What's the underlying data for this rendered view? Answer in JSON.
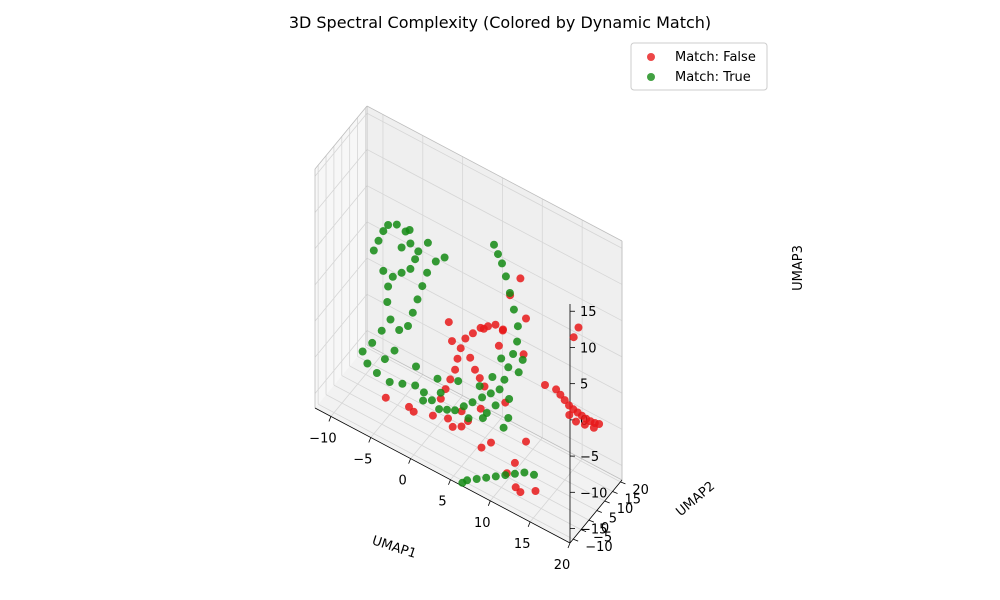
{
  "chart_data": {
    "type": "scatter",
    "projection": "3d",
    "title": "3D Spectral Complexity (Colored by Dynamic Match)",
    "xlabel": "UMAP1",
    "ylabel": "UMAP2",
    "zlabel": "UMAP3",
    "xlim": [
      -12,
      20
    ],
    "ylim": [
      -12,
      21
    ],
    "zlim": [
      -17,
      16
    ],
    "x_ticks": [
      "−10",
      "−5",
      "0",
      "5",
      "10",
      "15",
      "20"
    ],
    "y_ticks": [
      "−10",
      "−5",
      "0",
      "5",
      "10",
      "15",
      "20"
    ],
    "z_ticks": [
      "−15",
      "−10",
      "−5",
      "0",
      "5",
      "10",
      "15"
    ],
    "grid": true,
    "legend": {
      "placement": "top-right",
      "entries": [
        {
          "label": "Match: False",
          "color": "#e8191a"
        },
        {
          "label": "Match: True",
          "color": "#138a13"
        }
      ]
    },
    "series": [
      {
        "name": "Match: False",
        "color": "#e8191a",
        "points": [
          [
            17.5,
            3.0,
            6.0
          ],
          [
            18.0,
            3.5,
            7.5
          ],
          [
            12.5,
            -2.0,
            7.0
          ],
          [
            11.0,
            -4.5,
            10.0
          ],
          [
            12.0,
            -3.0,
            12.5
          ],
          [
            10.5,
            -6.5,
            5.5
          ],
          [
            4.8,
            -10.0,
            1.5
          ],
          [
            4.2,
            -9.0,
            3.5
          ],
          [
            8.0,
            -6.0,
            4.0
          ],
          [
            9.5,
            -4.0,
            2.0
          ],
          [
            12.0,
            -1.0,
            1.5
          ],
          [
            14.0,
            2.5,
            -2.5
          ],
          [
            10.5,
            -5.0,
            -5.0
          ],
          [
            8.0,
            -8.0,
            -6.5
          ],
          [
            6.0,
            -10.0,
            -7.5
          ],
          [
            -5.0,
            -2.5,
            -14.0
          ],
          [
            2.5,
            -10.5,
            -10.0
          ],
          [
            10.5,
            -4.0,
            -15.0
          ],
          [
            8.0,
            -7.5,
            -12.0
          ],
          [
            9.0,
            -6.5,
            -11.0
          ],
          [
            12.5,
            -2.0,
            -10.0
          ],
          [
            11.5,
            -4.0,
            -13.0
          ],
          [
            7.0,
            -11.0,
            -8.0
          ],
          [
            14.5,
            7.0,
            -4.0
          ],
          [
            15.0,
            7.2,
            -4.5
          ],
          [
            15.5,
            7.4,
            -5.0
          ],
          [
            16.0,
            7.6,
            -5.5
          ],
          [
            16.5,
            7.8,
            -5.8
          ],
          [
            17.0,
            8.0,
            -6.0
          ],
          [
            17.5,
            8.2,
            -6.2
          ],
          [
            18.0,
            8.4,
            -6.4
          ],
          [
            18.5,
            8.6,
            -6.5
          ],
          [
            19.0,
            8.8,
            -6.5
          ],
          [
            19.5,
            9.0,
            -6.4
          ],
          [
            16.2,
            6.8,
            -6.5
          ],
          [
            17.0,
            7.0,
            -7.0
          ],
          [
            18.0,
            7.6,
            -7.0
          ],
          [
            19.0,
            8.2,
            -7.0
          ],
          [
            5.0,
            -2.5,
            0.0
          ],
          [
            5.8,
            -1.8,
            1.0
          ],
          [
            6.6,
            -1.0,
            2.0
          ],
          [
            7.4,
            -0.3,
            2.5
          ],
          [
            8.2,
            0.4,
            3.0
          ],
          [
            9.0,
            1.0,
            2.5
          ],
          [
            4.5,
            -3.0,
            -1.5
          ],
          [
            4.2,
            -3.5,
            -3.0
          ],
          [
            4.0,
            -4.0,
            -4.5
          ],
          [
            3.5,
            -4.5,
            -6.0
          ],
          [
            3.0,
            -5.0,
            -7.5
          ],
          [
            2.5,
            -5.5,
            -9.0
          ],
          [
            5.5,
            -2.0,
            -2.5
          ],
          [
            6.0,
            -1.5,
            -4.0
          ],
          [
            6.5,
            -1.0,
            -5.0
          ],
          [
            7.0,
            -0.5,
            -6.0
          ],
          [
            3.5,
            -6.0,
            -11.0
          ],
          [
            4.0,
            -5.5,
            -12.0
          ],
          [
            5.0,
            -5.0,
            -11.5
          ],
          [
            -1.0,
            -8.0,
            -11.5
          ],
          [
            -0.5,
            -7.5,
            -12.0
          ],
          [
            12.0,
            -3.0,
            -17.0
          ],
          [
            11.5,
            -3.5,
            -16.5
          ],
          [
            13.5,
            -1.0,
            -16.5
          ]
        ]
      },
      {
        "name": "Match: True",
        "color": "#138a13",
        "points": [
          [
            -7.0,
            0.0,
            4.5
          ],
          [
            -6.5,
            0.5,
            6.0
          ],
          [
            -6.0,
            1.0,
            7.5
          ],
          [
            -5.5,
            1.5,
            8.5
          ],
          [
            -4.5,
            2.0,
            9.0
          ],
          [
            -3.5,
            2.5,
            8.5
          ],
          [
            -3.0,
            3.0,
            7.0
          ],
          [
            -2.5,
            3.5,
            5.0
          ],
          [
            -3.0,
            3.0,
            3.5
          ],
          [
            -4.0,
            2.5,
            2.5
          ],
          [
            -5.0,
            2.0,
            1.5
          ],
          [
            -5.5,
            1.5,
            0.0
          ],
          [
            -5.5,
            1.0,
            -2.0
          ],
          [
            -5.0,
            0.5,
            -4.0
          ],
          [
            -4.0,
            1.0,
            -5.0
          ],
          [
            -3.0,
            1.5,
            -4.0
          ],
          [
            -2.5,
            2.0,
            -2.0
          ],
          [
            -2.0,
            2.5,
            0.0
          ],
          [
            -1.5,
            3.0,
            2.0
          ],
          [
            -1.0,
            3.5,
            4.0
          ],
          [
            0.0,
            4.0,
            6.0
          ],
          [
            1.0,
            4.5,
            7.0
          ],
          [
            -6.0,
            0.0,
            -6.0
          ],
          [
            -7.0,
            -1.0,
            -8.0
          ],
          [
            -8.0,
            -2.0,
            -9.5
          ],
          [
            -7.5,
            -1.5,
            -11.0
          ],
          [
            -6.5,
            -0.5,
            -12.0
          ],
          [
            -5.0,
            0.0,
            -12.5
          ],
          [
            -3.5,
            0.5,
            -12.0
          ],
          [
            -2.0,
            1.0,
            -11.5
          ],
          [
            -1.0,
            1.5,
            -12.0
          ],
          [
            0.0,
            1.5,
            -12.5
          ],
          [
            1.0,
            1.0,
            -13.0
          ],
          [
            2.0,
            1.0,
            -12.5
          ],
          [
            3.0,
            1.0,
            -12.0
          ],
          [
            4.0,
            1.5,
            -11.0
          ],
          [
            5.0,
            2.0,
            -10.0
          ],
          [
            6.0,
            3.0,
            -9.0
          ],
          [
            7.0,
            3.5,
            -8.0
          ],
          [
            8.0,
            4.0,
            -7.0
          ],
          [
            8.5,
            4.5,
            -5.5
          ],
          [
            9.0,
            4.5,
            -3.5
          ],
          [
            9.5,
            5.0,
            -1.5
          ],
          [
            10.0,
            5.0,
            0.5
          ],
          [
            10.0,
            5.5,
            2.5
          ],
          [
            9.5,
            5.5,
            4.5
          ],
          [
            9.0,
            5.5,
            6.5
          ],
          [
            8.5,
            5.5,
            8.5
          ],
          [
            8.0,
            5.5,
            10.0
          ],
          [
            7.5,
            5.5,
            11.0
          ],
          [
            7.0,
            5.5,
            12.0
          ],
          [
            -4.5,
            0.5,
            -8.0
          ],
          [
            -5.5,
            -0.5,
            -9.5
          ],
          [
            -2.0,
            1.5,
            -9.0
          ],
          [
            0.5,
            2.5,
            -9.5
          ],
          [
            3.0,
            3.0,
            -8.5
          ],
          [
            5.5,
            4.0,
            -8.0
          ],
          [
            7.0,
            4.5,
            -6.0
          ],
          [
            8.0,
            5.0,
            -3.0
          ],
          [
            7.5,
            4.0,
            -9.5
          ],
          [
            6.5,
            3.5,
            -11.0
          ],
          [
            9.0,
            4.5,
            -10.5
          ],
          [
            8.5,
            4.0,
            -12.0
          ],
          [
            -3.0,
            2.5,
            9.0
          ],
          [
            -1.0,
            4.0,
            8.0
          ],
          [
            -6.0,
            1.0,
            2.0
          ],
          [
            -4.0,
            2.5,
            6.0
          ],
          [
            -2.0,
            3.0,
            6.5
          ],
          [
            1.0,
            2.0,
            -11.0
          ],
          [
            -1.0,
            1.0,
            -13.0
          ],
          [
            4.5,
            2.0,
            -12.5
          ],
          [
            6.0,
            3.5,
            -12.0
          ],
          [
            10.0,
            6.0,
            -4.0
          ],
          [
            10.5,
            6.0,
            -2.0
          ],
          [
            9.0,
            5.0,
            -8.0
          ],
          [
            6.5,
            -9.0,
            -17.0
          ],
          [
            7.5,
            -8.0,
            -16.5
          ],
          [
            8.5,
            -7.0,
            -16.0
          ],
          [
            9.5,
            -6.0,
            -15.5
          ],
          [
            10.5,
            -5.0,
            -15.0
          ],
          [
            11.5,
            -4.0,
            -14.5
          ],
          [
            12.5,
            -3.0,
            -14.0
          ],
          [
            13.5,
            -2.0,
            -14.0
          ],
          [
            6.0,
            -9.5,
            -17.5
          ]
        ]
      }
    ]
  }
}
